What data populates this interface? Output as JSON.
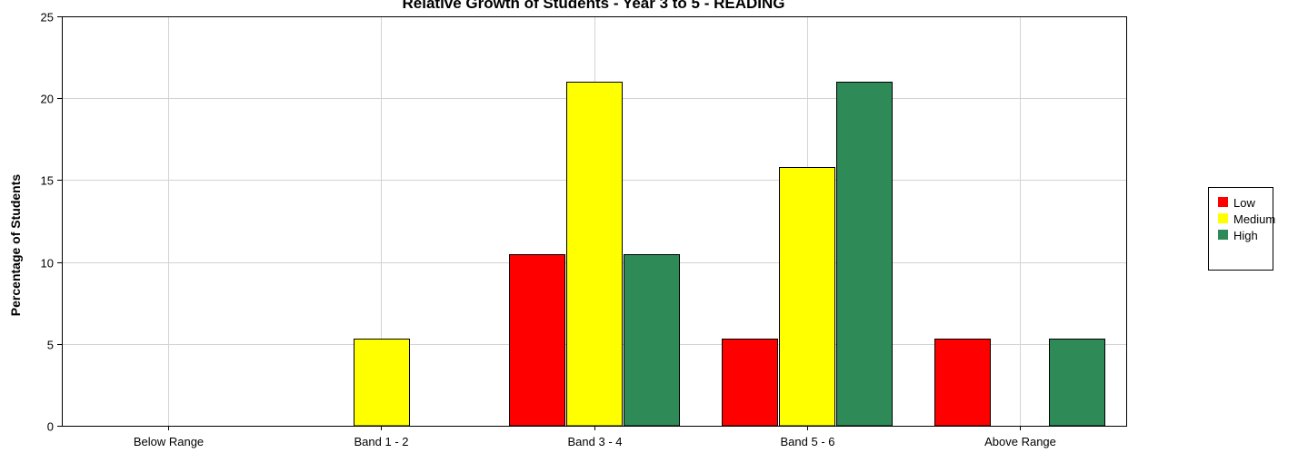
{
  "chart_data": {
    "type": "bar",
    "title": "Relative Growth of Students - Year 3 to 5 - READING",
    "xlabel": "",
    "ylabel": "Percentage of Students",
    "categories": [
      "Below Range",
      "Band 1 - 2",
      "Band 3 - 4",
      "Band 5 - 6",
      "Above Range"
    ],
    "ylim": [
      0,
      25
    ],
    "yticks": [
      0,
      5,
      10,
      15,
      20,
      25
    ],
    "grid": true,
    "legend_position": "right",
    "series": [
      {
        "name": "Low",
        "color": "#ff0000",
        "values": [
          0,
          0,
          10.5,
          5.3,
          5.3
        ]
      },
      {
        "name": "Medium",
        "color": "#ffff00",
        "values": [
          0,
          5.3,
          21.0,
          15.8,
          0
        ]
      },
      {
        "name": "High",
        "color": "#2e8b57",
        "values": [
          0,
          0,
          10.5,
          21.0,
          5.3
        ]
      }
    ]
  }
}
